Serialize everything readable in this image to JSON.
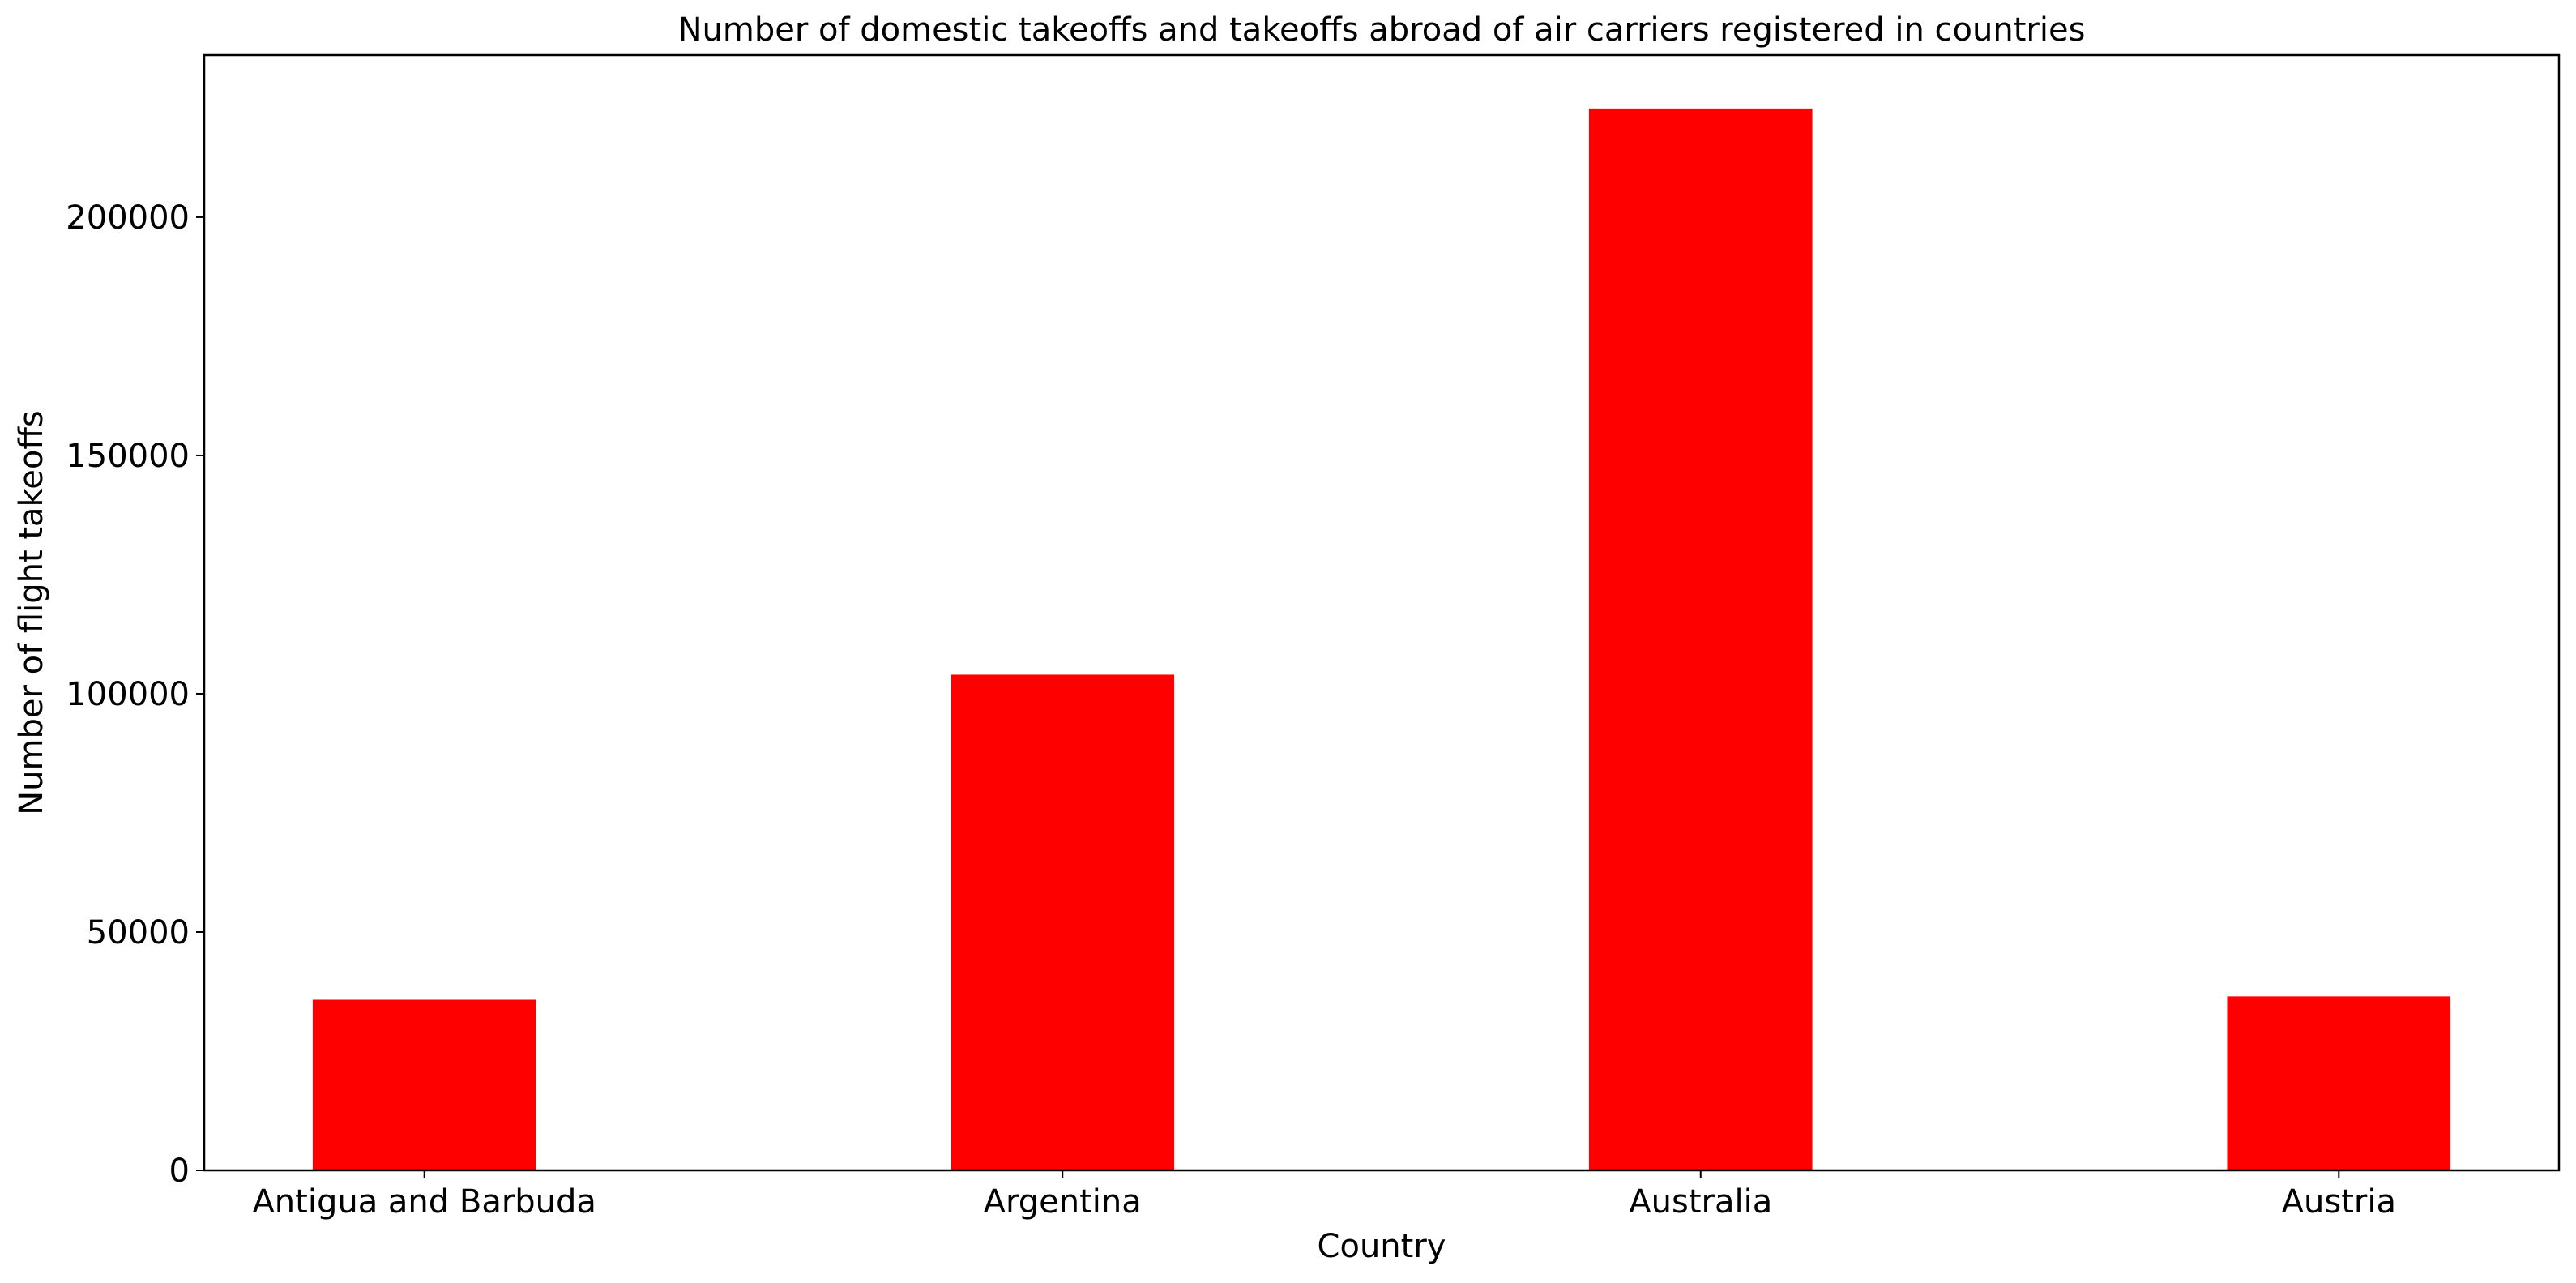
{
  "chart_data": {
    "type": "bar",
    "title": "Number of domestic takeoffs and takeoffs abroad of air carriers registered in countries",
    "xlabel": "Country",
    "ylabel": "Number of flight takeoffs",
    "categories": [
      "Antigua and Barbuda",
      "Argentina",
      "Australia",
      "Austria"
    ],
    "values": [
      35800,
      104000,
      222800,
      36500
    ],
    "ylim": [
      0,
      234000
    ],
    "yticks": [
      0,
      50000,
      100000,
      150000,
      200000
    ],
    "bar_color": "#ff0000",
    "grid": false,
    "legend": "none"
  }
}
